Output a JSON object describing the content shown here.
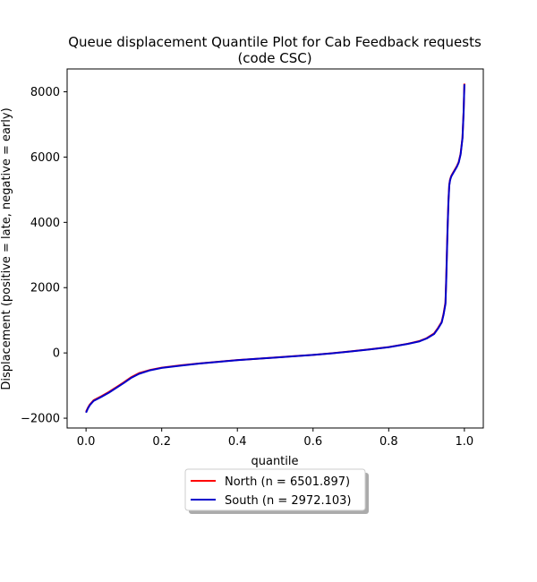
{
  "chart_data": {
    "type": "line",
    "title": "Queue displacement Quantile Plot for Cab Feedback  requests",
    "subtitle": "(code CSC)",
    "xlabel": "quantile",
    "ylabel": "Displacement (positive = late, negative = early)",
    "xlim": [
      -0.05,
      1.05
    ],
    "ylim": [
      -2300,
      8700
    ],
    "xticks": [
      0.0,
      0.2,
      0.4,
      0.6,
      0.8,
      1.0
    ],
    "xtick_labels": [
      "0.0",
      "0.2",
      "0.4",
      "0.6",
      "0.8",
      "1.0"
    ],
    "yticks": [
      -2000,
      0,
      2000,
      4000,
      6000,
      8000
    ],
    "ytick_labels": [
      "−2000",
      "0",
      "2000",
      "4000",
      "6000",
      "8000"
    ],
    "grid": false,
    "legend_position": "below",
    "series": [
      {
        "name": "North (n = 6501.897)",
        "color": "#ff0000",
        "x": [
          0.0,
          0.005,
          0.01,
          0.02,
          0.04,
          0.06,
          0.08,
          0.1,
          0.12,
          0.14,
          0.17,
          0.2,
          0.25,
          0.3,
          0.35,
          0.4,
          0.45,
          0.5,
          0.55,
          0.6,
          0.65,
          0.7,
          0.75,
          0.8,
          0.85,
          0.88,
          0.9,
          0.92,
          0.93,
          0.94,
          0.945,
          0.95,
          0.952,
          0.954,
          0.956,
          0.958,
          0.96,
          0.962,
          0.964,
          0.966,
          0.97,
          0.975,
          0.98,
          0.985,
          0.99,
          0.995,
          0.998,
          1.0
        ],
        "values": [
          -1800,
          -1680,
          -1580,
          -1450,
          -1330,
          -1200,
          -1050,
          -900,
          -740,
          -620,
          -520,
          -450,
          -380,
          -320,
          -270,
          -220,
          -180,
          -140,
          -100,
          -60,
          -10,
          50,
          110,
          180,
          280,
          360,
          450,
          600,
          760,
          950,
          1200,
          1550,
          2300,
          3200,
          4000,
          4700,
          5150,
          5300,
          5380,
          5440,
          5520,
          5620,
          5720,
          5850,
          6100,
          6600,
          7400,
          8250
        ]
      },
      {
        "name": "South (n = 2972.103)",
        "color": "#0000cc",
        "x": [
          0.0,
          0.005,
          0.01,
          0.02,
          0.04,
          0.06,
          0.08,
          0.1,
          0.12,
          0.14,
          0.17,
          0.2,
          0.25,
          0.3,
          0.35,
          0.4,
          0.45,
          0.5,
          0.55,
          0.6,
          0.65,
          0.7,
          0.75,
          0.8,
          0.85,
          0.88,
          0.9,
          0.92,
          0.93,
          0.94,
          0.945,
          0.95,
          0.952,
          0.954,
          0.956,
          0.958,
          0.96,
          0.962,
          0.964,
          0.966,
          0.97,
          0.975,
          0.98,
          0.985,
          0.99,
          0.995,
          0.998,
          1.0
        ],
        "values": [
          -1830,
          -1700,
          -1600,
          -1470,
          -1350,
          -1220,
          -1070,
          -920,
          -760,
          -640,
          -530,
          -460,
          -390,
          -325,
          -272,
          -222,
          -182,
          -142,
          -102,
          -62,
          -12,
          46,
          106,
          176,
          275,
          350,
          440,
          580,
          740,
          930,
          1170,
          1500,
          2200,
          3100,
          3950,
          4650,
          5120,
          5280,
          5360,
          5420,
          5500,
          5600,
          5700,
          5830,
          6080,
          6580,
          7380,
          8230
        ]
      }
    ]
  }
}
